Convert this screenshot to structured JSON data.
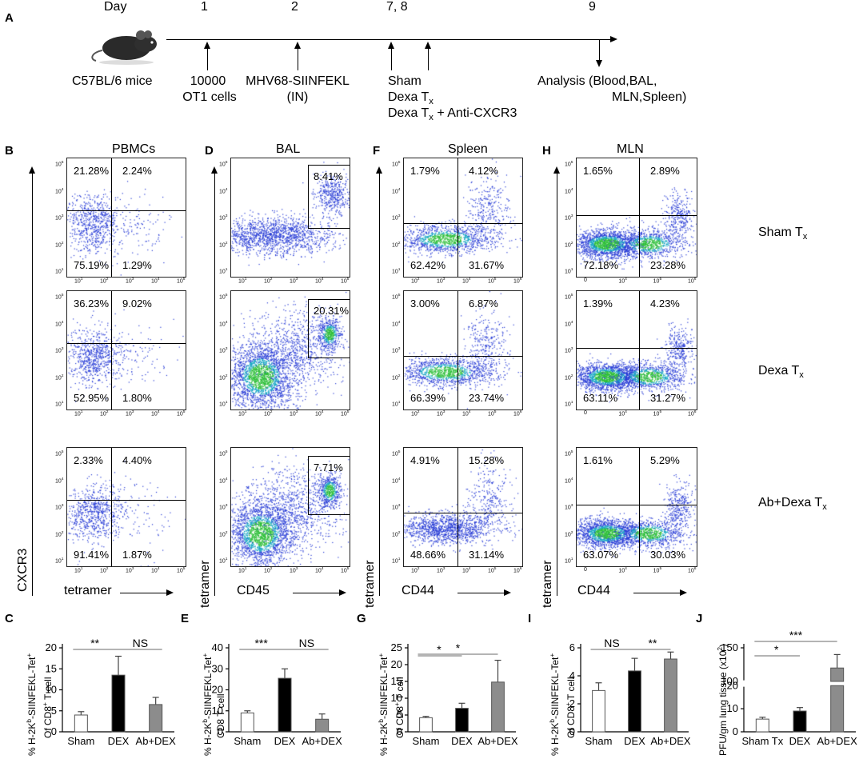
{
  "panelA": {
    "letter": "A",
    "day_label": "Day",
    "days": [
      "1",
      "2",
      "7, 8",
      "9"
    ],
    "mouse_label": "C57BL/6 mice",
    "step1": [
      "10000",
      "OT1 cells"
    ],
    "step2": [
      "MHV68-SIINFEKL",
      "(IN)"
    ],
    "step3": [
      "Sham",
      "Dexa T",
      "Dexa T",
      " + Anti-CXCR3"
    ],
    "step3_sub": "x",
    "step4": [
      "Analysis  (Blood,BAL,",
      "MLN,Spleen)"
    ]
  },
  "flow": {
    "B": {
      "letter": "B",
      "title": "PBMCs",
      "ylabel": "CXCR3",
      "xlabel": "tetramer",
      "rows": [
        [
          "21.28%",
          "2.24%",
          "75.19%",
          "1.29%"
        ],
        [
          "36.23%",
          "9.02%",
          "52.95%",
          "1.80%"
        ],
        [
          "2.33%",
          "4.40%",
          "91.41%",
          "1.87%"
        ]
      ]
    },
    "D": {
      "letter": "D",
      "title": "BAL",
      "ylabel": "tetramer",
      "xlabel": "CD45",
      "rows": [
        "8.41%",
        "20.31%",
        "7.71%"
      ]
    },
    "F": {
      "letter": "F",
      "title": "Spleen",
      "ylabel": "tetramer",
      "xlabel": "CD44",
      "rows": [
        [
          "1.79%",
          "4.12%",
          "62.42%",
          "31.67%"
        ],
        [
          "3.00%",
          "6.87%",
          "66.39%",
          "23.74%"
        ],
        [
          "4.91%",
          "15.28%",
          "48.66%",
          "31.14%"
        ]
      ]
    },
    "H": {
      "letter": "H",
      "title": "MLN",
      "ylabel": "tetramer",
      "xlabel": "CD44",
      "rows": [
        [
          "1.65%",
          "2.89%",
          "72.18%",
          "23.28%"
        ],
        [
          "1.39%",
          "4.23%",
          "63.11%",
          "31.27%"
        ],
        [
          "1.61%",
          "5.29%",
          "63.07%",
          "30.03%"
        ]
      ]
    },
    "treatments": [
      "Sham T",
      "Dexa T",
      "Ab+Dexa T"
    ],
    "treatment_sub": "x",
    "x_ticks_small": [
      "10",
      "10",
      "10",
      "10",
      "10"
    ],
    "tick_exps_B": [
      "1",
      "2",
      "3",
      "4",
      "5"
    ],
    "tick_exps_F": [
      "2",
      "3",
      "4",
      "5",
      "6"
    ],
    "tick_exps_H": [
      "0",
      "4",
      "5",
      "6"
    ]
  },
  "chart_data": [
    {
      "type": "bar",
      "panel": "C",
      "categories": [
        "Sham",
        "DEX",
        "Ab+DEX"
      ],
      "values": [
        4,
        13.5,
        6.5
      ],
      "errors": [
        0.8,
        4.5,
        1.7
      ],
      "ylim": [
        0,
        20
      ],
      "yticks": [
        "0",
        "5",
        "10",
        "15",
        "20"
      ],
      "ylabel": [
        "% H-2K",
        "b",
        "-SIINFEKL-Tet",
        "+",
        "Of CD8",
        "+",
        " T cell"
      ],
      "significance": [
        "**",
        "NS"
      ],
      "colors": [
        "#ffffff",
        "#000000",
        "#8c8c8c"
      ]
    },
    {
      "type": "bar",
      "panel": "E",
      "categories": [
        "Sham",
        "DEX",
        "Ab+DEX"
      ],
      "values": [
        9,
        25.5,
        6
      ],
      "errors": [
        1,
        4.5,
        2.5
      ],
      "ylim": [
        0,
        40
      ],
      "yticks": [
        "0",
        "10",
        "20",
        "30",
        "40"
      ],
      "ylabel": [
        "% H-2K",
        "b",
        "-SIINFEKL-Tet",
        "+",
        "CD8 T cell",
        "",
        ""
      ],
      "significance": [
        "***",
        "NS"
      ],
      "colors": [
        "#ffffff",
        "#000000",
        "#8c8c8c"
      ]
    },
    {
      "type": "bar",
      "panel": "G",
      "categories": [
        "Sham",
        "DEX",
        "Ab+DEX"
      ],
      "values": [
        4.2,
        7,
        14.8
      ],
      "errors": [
        0.4,
        1.5,
        6.5
      ],
      "ylim": [
        0,
        25
      ],
      "yticks": [
        "0",
        "5",
        "10",
        "15",
        "20",
        "25"
      ],
      "ylabel": [
        "% H-2K",
        "b",
        "-SIINFEKL-Tet",
        "+",
        "Of CD8",
        "+",
        " T cell"
      ],
      "significance": [
        "*",
        "*"
      ],
      "colors": [
        "#ffffff",
        "#000000",
        "#8c8c8c"
      ]
    },
    {
      "type": "bar",
      "panel": "I",
      "categories": [
        "Sham",
        "DEX",
        "Ab+DEX"
      ],
      "values": [
        2.95,
        4.35,
        5.2
      ],
      "errors": [
        0.55,
        0.9,
        0.5
      ],
      "ylim": [
        0,
        6
      ],
      "yticks": [
        "0",
        "2",
        "4",
        "6"
      ],
      "ylabel": [
        "% H-2K",
        "b",
        "-SIINFEKL-Tet",
        "+",
        "Of CD8",
        "+",
        " T cell"
      ],
      "significance": [
        "NS",
        "**"
      ],
      "colors": [
        "#ffffff",
        "#000000",
        "#8c8c8c"
      ]
    },
    {
      "type": "bar",
      "panel": "J",
      "categories": [
        "Sham Tx",
        "DEX",
        "Ab+DEX"
      ],
      "values": [
        5.5,
        9,
        120
      ],
      "errors": [
        0.8,
        1.5,
        20
      ],
      "ylim": [
        0,
        150
      ],
      "yticks": [
        "0",
        "10",
        "20",
        "100",
        "150"
      ],
      "broken_axis": true,
      "ylabel": [
        "PFU/gm lung tissue (x10",
        "2",
        ")",
        "",
        "",
        "",
        ""
      ],
      "significance": [
        "*",
        "***"
      ],
      "colors": [
        "#ffffff",
        "#000000",
        "#8c8c8c"
      ]
    }
  ],
  "bar_letters": [
    "C",
    "E",
    "G",
    "I",
    "J"
  ]
}
